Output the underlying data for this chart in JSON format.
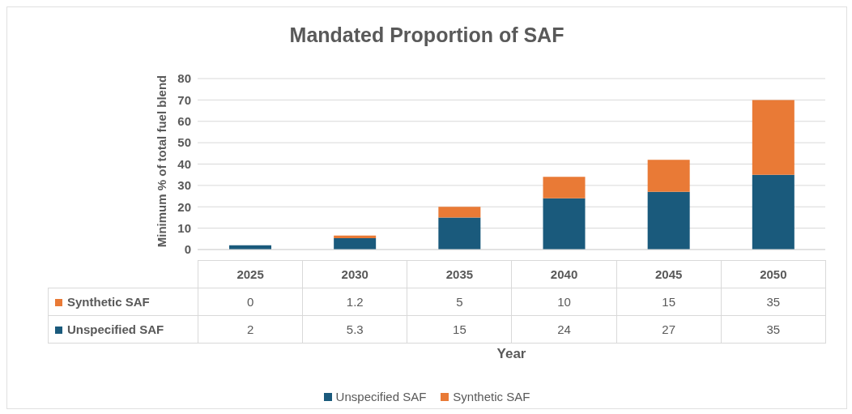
{
  "chart_data": {
    "type": "bar",
    "title": "Mandated Proportion of SAF",
    "xlabel": "Year",
    "ylabel": "Minimum % of total fuel blend",
    "categories": [
      "2025",
      "2030",
      "2035",
      "2040",
      "2045",
      "2050"
    ],
    "stacked": true,
    "series": [
      {
        "name": "Unspecified SAF",
        "color": "#1a5a7c",
        "values": [
          2,
          5.3,
          15,
          24,
          27,
          35
        ]
      },
      {
        "name": "Synthetic SAF",
        "color": "#e97a36",
        "values": [
          0,
          1.2,
          5,
          10,
          15,
          35
        ]
      }
    ],
    "ylim": [
      0,
      80
    ],
    "yticks": [
      0,
      10,
      20,
      30,
      40,
      50,
      60,
      70,
      80
    ],
    "grid": "y",
    "legend": "bottom",
    "data_labels": true
  }
}
